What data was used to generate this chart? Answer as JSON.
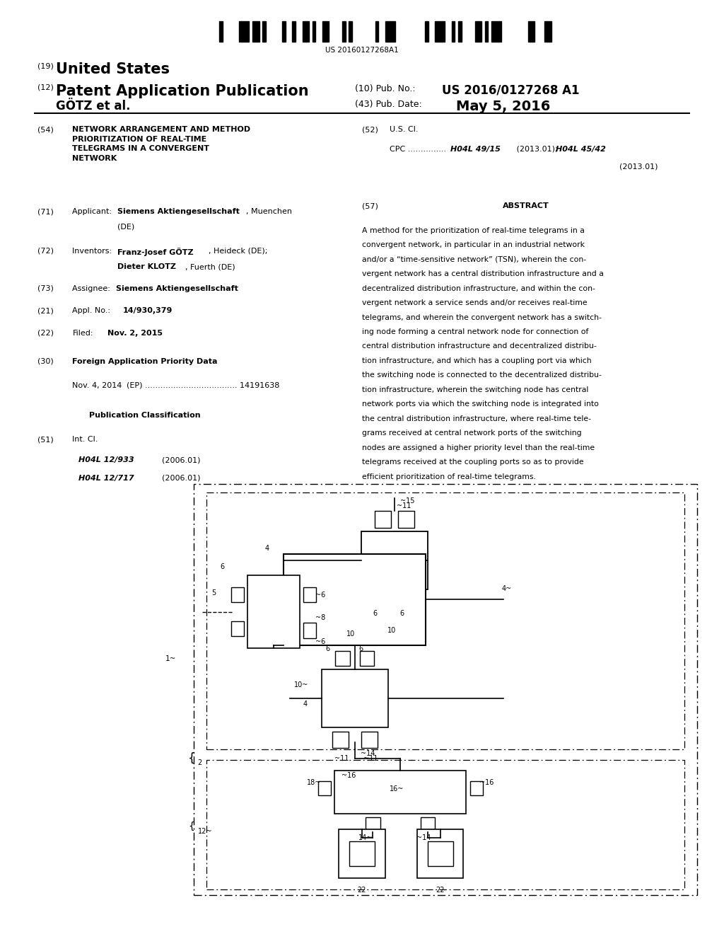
{
  "background_color": "#ffffff",
  "page_width": 10.24,
  "page_height": 13.2,
  "barcode_text": "US 20160127268A1",
  "header": {
    "country_prefix": "(19)",
    "country": "United States",
    "type_prefix": "(12)",
    "type": "Patent Application Publication",
    "pub_no_prefix": "(10) Pub. No.:",
    "pub_no": "US 2016/0127268 A1",
    "inventors": "GÖTZ et al.",
    "date_prefix": "(43) Pub. Date:",
    "date": "May 5, 2016"
  },
  "abstract_text": "A method for the prioritization of real-time telegrams in a convergent network, in particular in an industrial network and/or a “time-sensitive network” (TSN), wherein the convergent network has a central distribution infrastructure and a decentralized distribution infrastructure, and within the convergent network a service sends and/or receives real-time telegrams, and wherein the convergent network has a switching node forming a central network node for connection of central distribution infrastructure and decentralized distribution infrastructure, and which has a coupling port via which the switching node is connected to the decentralized distribution infrastructure, wherein the switching node has central network ports via which the switching node is integrated into the central distribution infrastructure, where real-time telegrams received at central network ports of the switching nodes are assigned a higher priority level than the real-time telegrams received at the coupling ports so as to provide efficient prioritization of real-time telegrams."
}
